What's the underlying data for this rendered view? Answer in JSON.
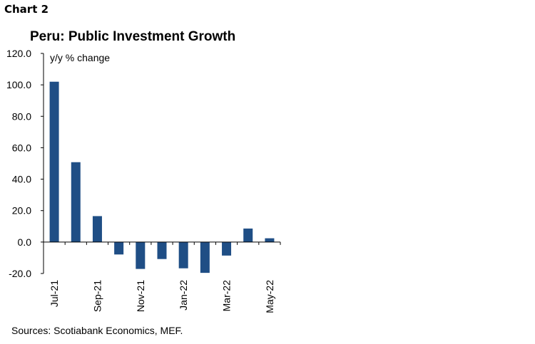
{
  "header": {
    "label": "Chart 2",
    "title": "Peru: Public Investment Growth"
  },
  "footer": {
    "source": "Sources: Scotiabank Economics, MEF."
  },
  "colors": {
    "bar": "#1f4e85",
    "axis": "#000000"
  },
  "chart_data": {
    "type": "bar",
    "title": "Peru: Public Investment Growth",
    "unit_label": "y/y % change",
    "categories": [
      "Jul-21",
      "Aug-21",
      "Sep-21",
      "Oct-21",
      "Nov-21",
      "Dec-21",
      "Jan-22",
      "Feb-22",
      "Mar-22",
      "Apr-22",
      "May-22"
    ],
    "x_tick_labels": [
      "Jul-21",
      "",
      "Sep-21",
      "",
      "Nov-21",
      "",
      "Jan-22",
      "",
      "Mar-22",
      "",
      "May-22"
    ],
    "values": [
      102.0,
      50.8,
      16.5,
      -7.9,
      -17.1,
      -10.8,
      -16.7,
      -19.6,
      -8.6,
      8.6,
      2.4
    ],
    "ylim": [
      -20.0,
      120.0
    ],
    "yticks": [
      "120.0",
      "100.0",
      "80.0",
      "60.0",
      "40.0",
      "20.0",
      "0.0",
      "-20.0"
    ],
    "grid": false,
    "legend": "none"
  }
}
